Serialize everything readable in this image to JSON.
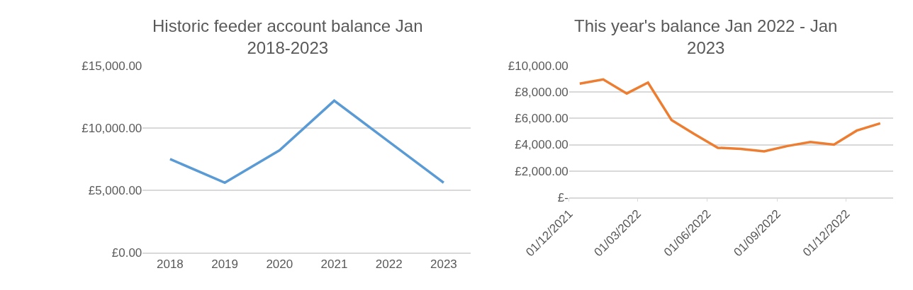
{
  "chart_data": [
    {
      "type": "line",
      "title": "Historic feeder account balance Jan 2018-2023",
      "categories": [
        "2018",
        "2019",
        "2020",
        "2021",
        "2022",
        "2023"
      ],
      "series": [
        {
          "color": "#5b9bd5",
          "values": [
            7500,
            5600,
            8200,
            12200,
            8900,
            5600
          ]
        }
      ],
      "ylim": [
        0,
        15000
      ],
      "yticks": [
        {
          "value": 0,
          "label": "£0.00"
        },
        {
          "value": 5000,
          "label": "£5,000.00"
        },
        {
          "value": 10000,
          "label": "£10,000.00"
        },
        {
          "value": 15000,
          "label": "£15,000.00"
        }
      ],
      "grid": "y",
      "line_style": "solid"
    },
    {
      "type": "line",
      "title": "This year's balance Jan 2022 - Jan 2023",
      "x": [
        "2021-12-15",
        "2022-01-15",
        "2022-02-15",
        "2022-03-15",
        "2022-04-15",
        "2022-05-15",
        "2022-06-15",
        "2022-07-15",
        "2022-08-15",
        "2022-09-15",
        "2022-10-15",
        "2022-11-15",
        "2022-12-15",
        "2023-01-15"
      ],
      "series": [
        {
          "color": "#ed7d31",
          "values": [
            8650,
            8970,
            7900,
            8730,
            5880,
            4810,
            3760,
            3680,
            3490,
            3900,
            4200,
            4000,
            5070,
            5620
          ]
        }
      ],
      "xlim": [
        "2021-12-01",
        "2023-02-01"
      ],
      "xticks": [
        {
          "value": "2021-12-01",
          "label": "01/12/2021"
        },
        {
          "value": "2022-03-01",
          "label": "01/03/2022"
        },
        {
          "value": "2022-06-01",
          "label": "01/06/2022"
        },
        {
          "value": "2022-09-01",
          "label": "01/09/2022"
        },
        {
          "value": "2022-12-01",
          "label": "01/12/2022"
        }
      ],
      "ylim": [
        0,
        10000
      ],
      "yticks": [
        {
          "value": 0,
          "label": "£-"
        },
        {
          "value": 2000,
          "label": "£2,000.00"
        },
        {
          "value": 4000,
          "label": "£4,000.00"
        },
        {
          "value": 6000,
          "label": "£6,000.00"
        },
        {
          "value": 8000,
          "label": "£8,000.00"
        },
        {
          "value": 10000,
          "label": "£10,000.00"
        }
      ],
      "grid": "y",
      "line_style": "solid"
    }
  ]
}
